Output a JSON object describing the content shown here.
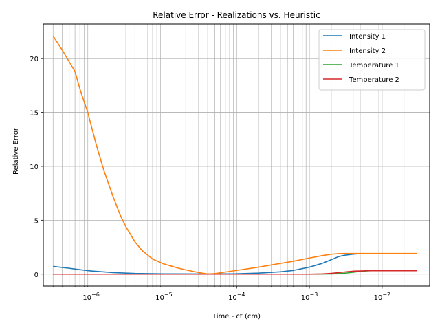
{
  "chart_data": {
    "type": "line",
    "title": "Relative Error - Realizations vs. Heuristic",
    "xlabel": "Time - ct (cm)",
    "ylabel": "Relative Error",
    "xscale": "log",
    "xlim": [
      2.2e-07,
      0.045
    ],
    "ylim": [
      -1.1,
      23.2
    ],
    "grid": "on (major and minor x, major y)",
    "legend_position": "top-right",
    "x_ticks": [
      1e-06,
      1e-05,
      0.0001,
      0.001,
      0.01
    ],
    "x_tick_labels": [
      "10",
      "10",
      "10",
      "10",
      "10"
    ],
    "x_tick_exponents": [
      "−6",
      "−5",
      "−4",
      "−3",
      "−2"
    ],
    "y_ticks": [
      0,
      5,
      10,
      15,
      20
    ],
    "y_tick_labels": [
      "0",
      "5",
      "10",
      "15",
      "20"
    ],
    "series": [
      {
        "name": "Intensity 1",
        "color": "#1f77b4",
        "x": [
          3e-07,
          5e-07,
          7e-07,
          1e-06,
          2e-06,
          4e-06,
          1e-05,
          3e-05,
          0.0001,
          0.0002,
          0.0004,
          0.0006,
          0.001,
          0.0015,
          0.002,
          0.0025,
          0.003,
          0.004,
          0.005,
          0.007,
          0.01,
          0.03
        ],
        "y": [
          0.72,
          0.55,
          0.42,
          0.3,
          0.15,
          0.07,
          0.03,
          0.02,
          0.04,
          0.1,
          0.22,
          0.35,
          0.65,
          1.0,
          1.35,
          1.62,
          1.75,
          1.85,
          1.9,
          1.9,
          1.9,
          1.9
        ]
      },
      {
        "name": "Intensity 2",
        "color": "#ff7f0e",
        "x": [
          3e-07,
          4e-07,
          5e-07,
          6e-07,
          7e-07,
          8e-07,
          9e-07,
          1e-06,
          1.2e-06,
          1.5e-06,
          2e-06,
          2.5e-06,
          3e-06,
          4e-06,
          5e-06,
          7e-06,
          1e-05,
          1.5e-05,
          2e-05,
          3e-05,
          4e-05,
          5e-05,
          7e-05,
          0.0001,
          0.0002,
          0.0004,
          0.0006,
          0.001,
          0.0015,
          0.002,
          0.0025,
          0.003,
          0.005,
          0.01,
          0.03
        ],
        "y": [
          22.1,
          20.8,
          19.7,
          18.8,
          17.2,
          16.0,
          15.0,
          13.8,
          11.8,
          9.6,
          7.2,
          5.5,
          4.4,
          3.0,
          2.2,
          1.4,
          0.95,
          0.6,
          0.4,
          0.15,
          0.02,
          0.05,
          0.2,
          0.35,
          0.65,
          1.0,
          1.2,
          1.5,
          1.72,
          1.85,
          1.9,
          1.92,
          1.92,
          1.92,
          1.92
        ]
      },
      {
        "name": "Temperature 1",
        "color": "#2ca02c",
        "x": [
          3e-07,
          1e-06,
          1e-05,
          0.0001,
          0.001,
          0.002,
          0.003,
          0.004,
          0.005,
          0.006,
          0.007,
          0.01,
          0.03
        ],
        "y": [
          0.0,
          0.0,
          0.0,
          0.0,
          0.0,
          0.02,
          0.08,
          0.18,
          0.26,
          0.3,
          0.32,
          0.32,
          0.32
        ]
      },
      {
        "name": "Temperature 2",
        "color": "#d62728",
        "x": [
          3e-07,
          1e-06,
          1e-05,
          0.0001,
          0.001,
          0.0015,
          0.002,
          0.003,
          0.004,
          0.005,
          0.006,
          0.01,
          0.03
        ],
        "y": [
          0.0,
          0.0,
          0.0,
          0.0,
          0.0,
          0.02,
          0.08,
          0.2,
          0.28,
          0.3,
          0.32,
          0.32,
          0.32
        ]
      }
    ]
  }
}
